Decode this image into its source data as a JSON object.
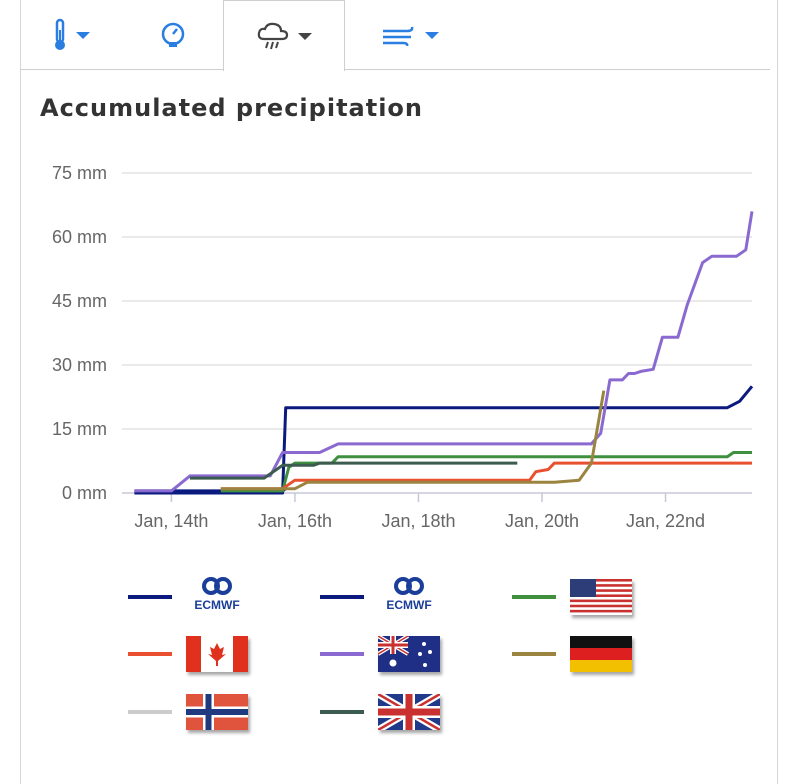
{
  "tabs": [
    {
      "name": "temperature",
      "icon": "thermometer-icon",
      "active": false
    },
    {
      "name": "pressure",
      "icon": "gauge-icon",
      "active": false
    },
    {
      "name": "precipitation",
      "icon": "rain-cloud-icon",
      "active": true
    },
    {
      "name": "wind",
      "icon": "wind-icon",
      "active": false
    }
  ],
  "colors": {
    "accent": "#2a7de1",
    "active_caret": "#444444",
    "grid": "#e3e3e3",
    "axis": "#c9c9d6",
    "tick_text": "#666666"
  },
  "chart_data": {
    "type": "line",
    "title": "Accumulated precipitation",
    "ylabel": "",
    "xlabel": "",
    "ylim": [
      0,
      75
    ],
    "xlim": [
      13.2,
      23.4
    ],
    "yticks": [
      0,
      15,
      30,
      45,
      60,
      75
    ],
    "ytick_labels": [
      "0 mm",
      "15 mm",
      "30 mm",
      "45 mm",
      "60 mm",
      "75 mm"
    ],
    "xticks": [
      14,
      16,
      18,
      20,
      22
    ],
    "xtick_labels": [
      "Jan, 14th",
      "Jan, 16th",
      "Jan, 18th",
      "Jan, 20th",
      "Jan, 22nd"
    ],
    "series": [
      {
        "name": "ECMWF",
        "color": "#0a1a7e",
        "points": [
          [
            13.4,
            0
          ],
          [
            15.8,
            0
          ],
          [
            15.85,
            20
          ],
          [
            23.0,
            20
          ],
          [
            23.2,
            21.5
          ],
          [
            23.4,
            25
          ]
        ]
      },
      {
        "name": "ECMWF",
        "color": "#0a1a7e",
        "points": [
          [
            13.4,
            0.5
          ],
          [
            15.8,
            0.5
          ],
          [
            15.85,
            1
          ]
        ]
      },
      {
        "name": "USA",
        "color": "#3f8f3f",
        "points": [
          [
            14.8,
            0.5
          ],
          [
            15.8,
            0.5
          ],
          [
            15.9,
            6
          ],
          [
            16.0,
            7
          ],
          [
            16.6,
            7
          ],
          [
            16.7,
            8.5
          ],
          [
            23.0,
            8.5
          ],
          [
            23.1,
            9.5
          ],
          [
            23.4,
            9.5
          ]
        ]
      },
      {
        "name": "Canada",
        "color": "#e8502f",
        "points": [
          [
            14.8,
            1
          ],
          [
            15.8,
            1
          ],
          [
            16.0,
            3
          ],
          [
            19.8,
            3
          ],
          [
            19.9,
            5
          ],
          [
            20.1,
            5.5
          ],
          [
            20.2,
            7
          ],
          [
            23.4,
            7
          ]
        ]
      },
      {
        "name": "Australia",
        "color": "#8a6ad0",
        "points": [
          [
            13.4,
            0.5
          ],
          [
            14.0,
            0.5
          ],
          [
            14.3,
            4
          ],
          [
            15.6,
            4
          ],
          [
            15.8,
            9.5
          ],
          [
            16.4,
            9.5
          ],
          [
            16.7,
            11.5
          ],
          [
            20.8,
            11.5
          ],
          [
            20.95,
            14
          ],
          [
            21.1,
            26.5
          ],
          [
            21.3,
            26.5
          ],
          [
            21.4,
            28
          ],
          [
            21.5,
            28
          ],
          [
            21.6,
            28.5
          ],
          [
            21.8,
            29
          ],
          [
            21.95,
            36.5
          ],
          [
            22.2,
            36.5
          ],
          [
            22.35,
            44
          ],
          [
            22.6,
            54
          ],
          [
            22.75,
            55.5
          ],
          [
            23.15,
            55.5
          ],
          [
            23.3,
            57
          ],
          [
            23.4,
            66
          ]
        ]
      },
      {
        "name": "Germany",
        "color": "#9b8440",
        "points": [
          [
            14.8,
            1
          ],
          [
            16.0,
            1
          ],
          [
            16.2,
            2.5
          ],
          [
            20.2,
            2.5
          ],
          [
            20.6,
            3
          ],
          [
            20.8,
            7
          ],
          [
            21.0,
            24
          ]
        ]
      },
      {
        "name": "Norway",
        "color": "#cccccc",
        "points": []
      },
      {
        "name": "UK",
        "color": "#3c5c4f",
        "points": [
          [
            14.3,
            3.5
          ],
          [
            15.5,
            3.5
          ],
          [
            15.8,
            6.5
          ],
          [
            16.3,
            6.5
          ],
          [
            16.4,
            7
          ],
          [
            19.6,
            7
          ]
        ]
      }
    ]
  },
  "legend": [
    {
      "label": "ECMWF",
      "color": "#0a1a7e",
      "icon": "ecmwf-logo"
    },
    {
      "label": "ECMWF",
      "color": "#0a1a7e",
      "icon": "ecmwf-logo"
    },
    {
      "label": "USA",
      "color": "#3f8f3f",
      "icon": "usa-flag-icon"
    },
    {
      "label": "Canada",
      "color": "#e8502f",
      "icon": "canada-flag-icon"
    },
    {
      "label": "Australia",
      "color": "#8a6ad0",
      "icon": "australia-flag-icon"
    },
    {
      "label": "Germany",
      "color": "#9b8440",
      "icon": "germany-flag-icon"
    },
    {
      "label": "Norway",
      "color": "#cccccc",
      "icon": "norway-flag-icon"
    },
    {
      "label": "UK",
      "color": "#3c5c4f",
      "icon": "uk-flag-icon"
    }
  ]
}
